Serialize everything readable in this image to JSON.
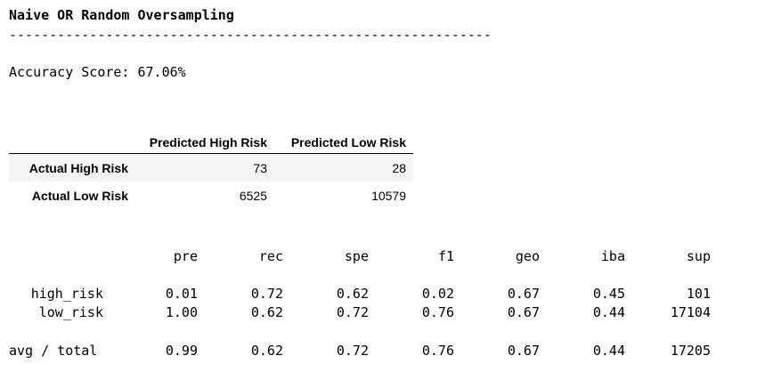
{
  "title": "Naive OR Random Oversampling",
  "separator": "------------------------------------------------------------",
  "accuracy": "Accuracy Score: 67.06%",
  "matrix": {
    "columns": [
      "",
      "Predicted High Risk",
      "Predicted Low Risk"
    ],
    "rows": [
      {
        "label": "Actual High Risk",
        "values": [
          "73",
          "28"
        ]
      },
      {
        "label": "Actual Low Risk",
        "values": [
          "6525",
          "10579"
        ]
      }
    ]
  },
  "report": {
    "headers": [
      "pre",
      "rec",
      "spe",
      "f1",
      "geo",
      "iba",
      "sup"
    ],
    "rows": [
      {
        "label": "high_risk",
        "values": [
          "0.01",
          "0.72",
          "0.62",
          "0.02",
          "0.67",
          "0.45",
          "101"
        ]
      },
      {
        "label": "low_risk",
        "values": [
          "1.00",
          "0.62",
          "0.72",
          "0.76",
          "0.67",
          "0.44",
          "17104"
        ]
      },
      {
        "label": "avg / total",
        "values": [
          "0.99",
          "0.62",
          "0.72",
          "0.76",
          "0.67",
          "0.44",
          "17205"
        ]
      }
    ]
  }
}
